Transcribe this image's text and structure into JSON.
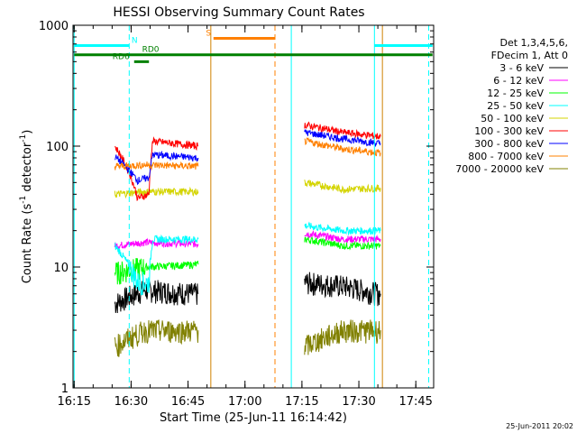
{
  "chart_data": {
    "type": "line",
    "title": "HESSI Observing Summary Count Rates",
    "xlabel": "Start Time (25-Jun-11 16:14:42)",
    "ylabel_main": "Count Rate (s",
    "ylabel_sup1": "-1",
    "ylabel_mid": " detector",
    "ylabel_sup2": "-1",
    "ylabel_end": ")",
    "yscale": "log",
    "ylim": [
      1,
      1000
    ],
    "xlim_minutes": [
      0,
      95
    ],
    "x_ticks": [
      {
        "label": "16:15",
        "min": 0.3
      },
      {
        "label": "16:30",
        "min": 15.3
      },
      {
        "label": "16:45",
        "min": 30.3
      },
      {
        "label": "17:00",
        "min": 45.3
      },
      {
        "label": "17:15",
        "min": 60.3
      },
      {
        "label": "17:30",
        "min": 75.3
      },
      {
        "label": "17:45",
        "min": 90.3
      }
    ],
    "y_ticks": [
      {
        "label": "1",
        "v": 1
      },
      {
        "label": "10",
        "v": 10
      },
      {
        "label": "100",
        "v": 100
      },
      {
        "label": "1000",
        "v": 1000
      }
    ],
    "legend": {
      "placement": "right",
      "header1": "Det 1,3,4,5,6,",
      "header2": "FDecim 1, Att 0"
    },
    "series": [
      {
        "name": "3 - 6 keV",
        "color": "#000000",
        "seg1": [
          [
            11,
            5
          ],
          [
            19,
            6.5
          ],
          [
            33,
            6
          ]
        ],
        "seg2": [
          [
            61,
            7.5
          ],
          [
            71,
            7
          ],
          [
            81,
            6
          ]
        ]
      },
      {
        "name": "6 - 12 keV",
        "color": "#ff00ff",
        "seg1": [
          [
            11,
            15
          ],
          [
            19,
            16
          ],
          [
            33,
            15.5
          ]
        ],
        "seg2": [
          [
            61,
            19
          ],
          [
            71,
            17
          ],
          [
            81,
            17
          ]
        ]
      },
      {
        "name": "12 - 25 keV",
        "color": "#00ff00",
        "seg1": [
          [
            11,
            9
          ],
          [
            19,
            10
          ],
          [
            33,
            10.5
          ]
        ],
        "seg2": [
          [
            61,
            17
          ],
          [
            71,
            15
          ],
          [
            81,
            15
          ]
        ]
      },
      {
        "name": "25 - 50 keV",
        "color": "#00ffff",
        "seg1": [
          [
            11,
            15
          ],
          [
            17,
            7.5
          ],
          [
            20,
            7.5
          ],
          [
            21,
            17
          ],
          [
            33,
            17
          ]
        ],
        "seg2": [
          [
            61,
            22
          ],
          [
            71,
            20
          ],
          [
            81,
            20
          ]
        ]
      },
      {
        "name": "50 - 100 keV",
        "color": "#d4d400",
        "seg1": [
          [
            11,
            40
          ],
          [
            19,
            42
          ],
          [
            33,
            42
          ]
        ],
        "seg2": [
          [
            61,
            50
          ],
          [
            71,
            44
          ],
          [
            81,
            45
          ]
        ]
      },
      {
        "name": "100 - 300 keV",
        "color": "#ff0000",
        "seg1": [
          [
            11,
            100
          ],
          [
            17,
            37
          ],
          [
            20,
            40
          ],
          [
            21,
            110
          ],
          [
            33,
            100
          ]
        ],
        "seg2": [
          [
            61,
            150
          ],
          [
            71,
            130
          ],
          [
            81,
            120
          ]
        ]
      },
      {
        "name": "300 - 800 keV",
        "color": "#0000ff",
        "seg1": [
          [
            11,
            82
          ],
          [
            17,
            52
          ],
          [
            20,
            55
          ],
          [
            21,
            85
          ],
          [
            33,
            80
          ]
        ],
        "seg2": [
          [
            61,
            130
          ],
          [
            71,
            115
          ],
          [
            81,
            105
          ]
        ]
      },
      {
        "name": "800 - 7000 keV",
        "color": "#ff8000",
        "seg1": [
          [
            11,
            68
          ],
          [
            19,
            70
          ],
          [
            33,
            68
          ]
        ],
        "seg2": [
          [
            61,
            110
          ],
          [
            71,
            95
          ],
          [
            81,
            88
          ]
        ]
      },
      {
        "name": "7000 - 20000 keV",
        "color": "#808000",
        "seg1": [
          [
            11,
            2.2
          ],
          [
            19,
            3
          ],
          [
            33,
            3
          ]
        ],
        "seg2": [
          [
            61,
            2.2
          ],
          [
            71,
            3
          ],
          [
            81,
            3
          ]
        ]
      }
    ],
    "vlines": [
      {
        "min": 0.3,
        "color": "#00ffff",
        "dash": false
      },
      {
        "min": 14.8,
        "color": "#00ffff",
        "dash": true
      },
      {
        "min": 36.3,
        "color": "#d08000",
        "dash": false
      },
      {
        "min": 53.2,
        "color": "#ff8000",
        "dash": true
      },
      {
        "min": 57.5,
        "color": "#00ffff",
        "dash": false
      },
      {
        "min": 79.4,
        "color": "#00ffff",
        "dash": false
      },
      {
        "min": 81.5,
        "color": "#d08000",
        "dash": false
      },
      {
        "min": 93.7,
        "color": "#00ffff",
        "dash": true
      }
    ],
    "bars": [
      {
        "label": "N",
        "color": "#00ffff",
        "x0": 0.3,
        "x1": 14.8,
        "v": 680,
        "label_min": 15.4
      },
      {
        "label": "",
        "color": "#00ffff",
        "x0": 79.4,
        "x1": 94.7,
        "v": 680
      },
      {
        "label": "RD0",
        "color": "#008000",
        "x0": 0.3,
        "x1": 94.7,
        "v": 570,
        "label_min": 18.2
      },
      {
        "label": "RD6",
        "color": "#008000",
        "x0": 16.1,
        "x1": 20.0,
        "v": 500,
        "label_min": 10.4
      },
      {
        "label": "S",
        "color": "#ff8000",
        "x0": 37.0,
        "x1": 53.2,
        "v": 780,
        "label_min": 35.0
      }
    ]
  },
  "timestamp": "25-Jun-2011 20:02"
}
